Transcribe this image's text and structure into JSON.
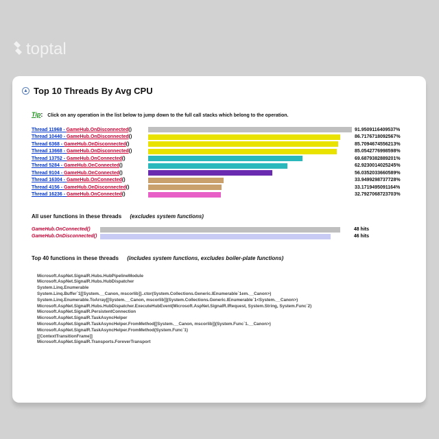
{
  "logo": {
    "text": "toptal"
  },
  "title": "Top 10 Threads By Avg CPU",
  "tip": {
    "label": "Tip",
    "text": "Click on any operation in the list below to jump down to the full call stacks which belong to the operation."
  },
  "chart": {
    "bar_max_pct": 91.95,
    "threads": [
      {
        "thread": "Thread 11968",
        "hub": "GameHub.OnDisconnected",
        "pct": 91.9509116409537,
        "pct_label": "91.9509116409537%",
        "color": "#bfbfbf"
      },
      {
        "thread": "Thread 10440",
        "hub": "GameHub.OnDisconnected",
        "pct": 86.7176718092567,
        "pct_label": "86.7176718092567%",
        "color": "#e9e200"
      },
      {
        "thread": "Thread 6368",
        "hub": "GameHub.OnDisconnected",
        "pct": 85.7094674556213,
        "pct_label": "85.7094674556213%",
        "color": "#e9e200"
      },
      {
        "thread": "Thread 13668",
        "hub": "GameHub.OnDisconnected",
        "pct": 85.0542776998598,
        "pct_label": "85.0542776998598%",
        "color": "#e9e200"
      },
      {
        "thread": "Thread 13752",
        "hub": "GameHub.OnConnected",
        "pct": 69.6879382889201,
        "pct_label": "69.6879382889201%",
        "color": "#2bb8bd"
      },
      {
        "thread": "Thread 5284",
        "hub": "GameHub.OnConnected",
        "pct": 62.9230014025245,
        "pct_label": "62.9230014025245%",
        "color": "#2bb8bd"
      },
      {
        "thread": "Thread 9104",
        "hub": "GameHub.OnConnected",
        "pct": 56.0352033660589,
        "pct_label": "56.0352033660589%",
        "color": "#6a2bb0"
      },
      {
        "thread": "Thread 16304",
        "hub": "GameHub.OnConnected",
        "pct": 33.9499298737728,
        "pct_label": "33.9499298737728%",
        "color": "#c9a06b"
      },
      {
        "thread": "Thread 4156",
        "hub": "GameHub.OnDisconnected",
        "pct": 33.1719495091164,
        "pct_label": "33.1719495091164%",
        "color": "#c9a06b"
      },
      {
        "thread": "Thread 16236",
        "hub": "GameHub.OnConnected",
        "pct": 32.7927068723703,
        "pct_label": "32.7927068723703%",
        "color": "#e85fc7"
      }
    ]
  },
  "user_funcs": {
    "heading": "All user functions in these threads",
    "sub": "(excludes system functions)",
    "items": [
      {
        "label": "GameHub.OnConnected()",
        "hits": "48 hits",
        "width_pct": 100,
        "color": "#bfbfbf"
      },
      {
        "label": "GameHub.OnDisconnected()",
        "hits": "46 hits",
        "width_pct": 96,
        "color": "#c8ccf5"
      }
    ]
  },
  "top40": {
    "heading": "Top 40 functions in these threads",
    "sub": "(includes system functions, excludes boiler-plate functions)",
    "items": [
      "Microsoft.AspNet.SignalR.Hubs.HubPipelineModule",
      "Microsoft.AspNet.SignalR.Hubs.HubDispatcher",
      "System.Linq.Enumerable",
      "System.Linq.Buffer`1[[System.__Canon, mscorlib]]..ctor(System.Collections.Generic.IEnumerable`1em.__Canon>)",
      "System.Linq.Enumerable.ToArray[[System.__Canon, mscorlib]](System.Collections.Generic.IEnumerable`1<System.__Canon>)",
      "Microsoft.AspNet.SignalR.Hubs.HubDispatcher.ExecuteHubEvent(Microsoft.AspNet.SignalR.IRequest, System.String, System.Func`2)",
      "Microsoft.AspNet.SignalR.PersistentConnection",
      "Microsoft.AspNet.SignalR.TaskAsyncHelper",
      "Microsoft.AspNet.SignalR.TaskAsyncHelper.FromMethod[[System.__Canon, mscorlib]](System.Func`1.__Canon>)",
      "Microsoft.AspNet.SignalR.TaskAsyncHelper.FromMethod(System.Func`1)",
      "[[ContextTransitionFrame]]",
      "Microsoft.AspNet.SignalR.Transports.ForeverTransport"
    ]
  }
}
